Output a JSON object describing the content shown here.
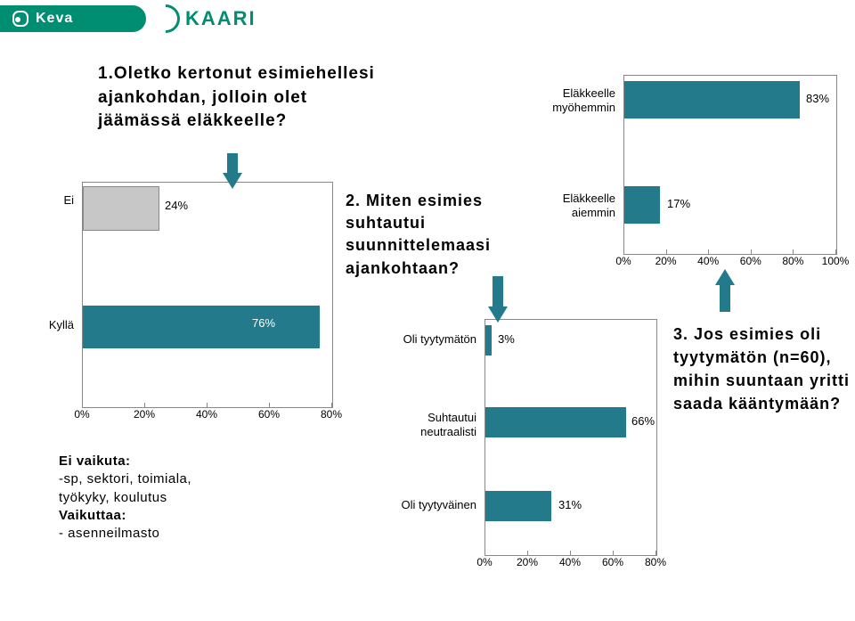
{
  "brand": {
    "keva": "Keva",
    "kaari": "KAARI"
  },
  "colors": {
    "accent": "#237a8a",
    "green": "#008e72",
    "gray": "#c7c7c7",
    "axis": "#888888",
    "text": "#000000"
  },
  "q1": {
    "title": "1.Oletko kertonut esimiehellesi ajankohdan, jolloin olet jäämässä eläkkeelle?",
    "categories": [
      "Ei",
      "Kyllä"
    ],
    "values": [
      24,
      76
    ],
    "value_labels": [
      "24%",
      "76%"
    ],
    "xlim": [
      0,
      80
    ],
    "xtick_step": 20,
    "ticks": [
      "0%",
      "20%",
      "40%",
      "60%",
      "80%"
    ]
  },
  "q2": {
    "title": "2. Miten esimies suhtautui suunnittelemaasi ajankohtaan?",
    "categories": [
      "Oli tyytymätön",
      "Suhtautui neutraalisti",
      "Oli tyytyväinen"
    ],
    "values": [
      3,
      66,
      31
    ],
    "value_labels": [
      "3%",
      "66%",
      "31%"
    ],
    "xlim": [
      0,
      80
    ],
    "xtick_step": 20,
    "ticks": [
      "0%",
      "20%",
      "40%",
      "60%",
      "80%"
    ]
  },
  "q3": {
    "title": "3. Jos esimies oli tyytymätön (n=60), mihin suuntaan yritti saada kääntymään?",
    "categories": [
      "Eläkkeelle myöhemmin",
      "Eläkkeelle aiemmin"
    ],
    "values": [
      83,
      17
    ],
    "value_labels": [
      "83%",
      "17%"
    ],
    "xlim": [
      0,
      100
    ],
    "xtick_step": 20,
    "ticks": [
      "0%",
      "20%",
      "40%",
      "60%",
      "80%",
      "100%"
    ]
  },
  "notes": {
    "line1": "Ei vaikuta:",
    "line2": "-sp, sektori, toimiala,",
    "line3": "työkyky, koulutus",
    "line4": "Vaikuttaa:",
    "line5": "- asenneilmasto"
  }
}
